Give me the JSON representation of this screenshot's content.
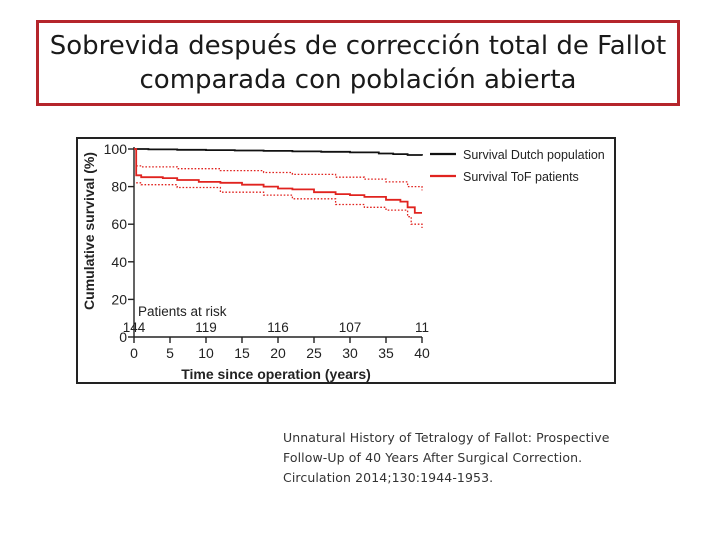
{
  "slide": {
    "title_lines": [
      "Sobrevida después de corrección total de Fallot",
      "comparada con población abierta"
    ],
    "citation_lines": [
      "Unnatural History of Tetralogy of Fallot: Prospective",
      "Follow-Up of 40 Years After Surgical Correction.",
      "Circulation 2014;130:1944-1953."
    ]
  },
  "colors": {
    "title_border": "#b5252b",
    "dutch_population": "#111111",
    "tof_patients": "#e0231f",
    "tof_ci": "#e0231f",
    "axis": "#222222"
  },
  "chart_data": {
    "type": "line",
    "title": "",
    "xlabel": "Time since operation (years)",
    "ylabel": "Cumulative survival (%)",
    "xlim": [
      0,
      40
    ],
    "ylim": [
      0,
      100
    ],
    "xticks": [
      0,
      5,
      10,
      15,
      20,
      25,
      30,
      35,
      40
    ],
    "yticks": [
      0,
      20,
      40,
      60,
      80,
      100
    ],
    "grid": false,
    "legend_position": "top-right",
    "series": [
      {
        "name": "Survival Dutch population",
        "style": "solid",
        "x": [
          0,
          2,
          6,
          10,
          14,
          18,
          22,
          26,
          30,
          34,
          36,
          38,
          40
        ],
        "y": [
          100,
          99.8,
          99.6,
          99.4,
          99.2,
          99,
          98.7,
          98.5,
          98.2,
          97.6,
          97.3,
          96.8,
          96.5
        ]
      },
      {
        "name": "Survival ToF patients",
        "style": "solid",
        "x": [
          0,
          0.3,
          1,
          4,
          6,
          9,
          12,
          15,
          18,
          20,
          22,
          25,
          28,
          30,
          32,
          35,
          37,
          38,
          38.5,
          39,
          40
        ],
        "y": [
          100,
          86,
          85,
          84.5,
          83.5,
          82.5,
          82,
          81,
          80,
          79,
          78.5,
          77,
          76,
          75.5,
          74.5,
          73,
          72,
          69,
          69,
          66,
          66
        ]
      }
    ],
    "confidence_band": {
      "style": "dotted",
      "upper": {
        "x": [
          0.3,
          1,
          6,
          12,
          18,
          22,
          28,
          32,
          35,
          38,
          40
        ],
        "y": [
          91,
          90.5,
          89.5,
          88.5,
          87.5,
          86.5,
          85,
          84,
          82.5,
          80,
          78
        ]
      },
      "lower": {
        "x": [
          0.3,
          1,
          6,
          12,
          18,
          22,
          28,
          32,
          35,
          38,
          38.5,
          40
        ],
        "y": [
          82,
          81,
          79.5,
          77,
          75.5,
          73.5,
          70.5,
          69,
          67.5,
          64,
          60,
          58
        ]
      }
    },
    "risk_table": {
      "label": "Patients at risk",
      "x": [
        0,
        10,
        20,
        30,
        40
      ],
      "counts": [
        "144",
        "119",
        "116",
        "107",
        "11"
      ]
    }
  }
}
